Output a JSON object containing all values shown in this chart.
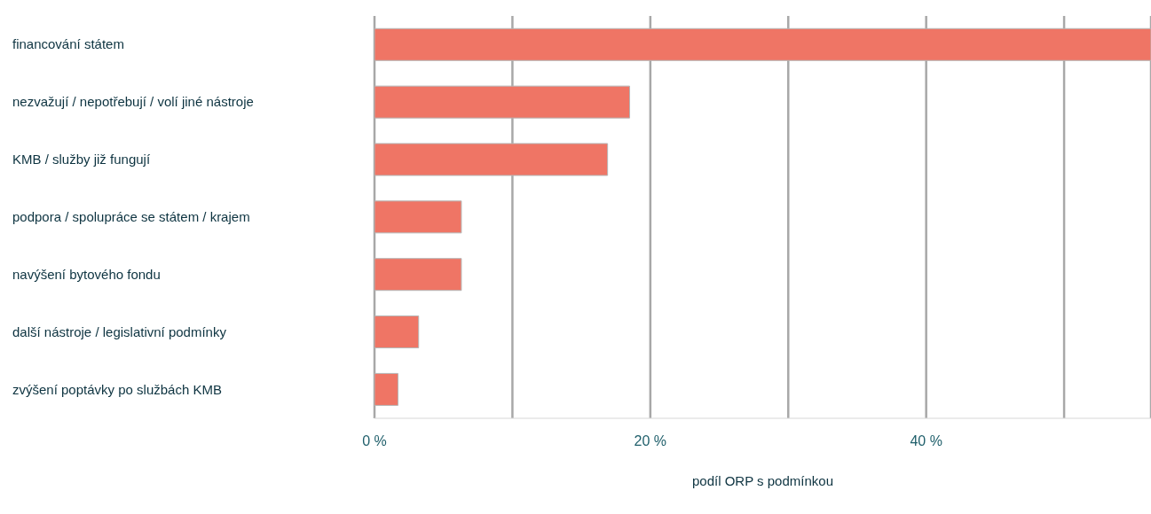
{
  "chart_data": {
    "type": "bar",
    "orientation": "horizontal",
    "xlabel": "podíl ORP s podmínkou",
    "categories": [
      "financování státem",
      "nezvažují / nepotřebují / volí jiné nástroje",
      "KMB / služby již fungují",
      "podpora / spolupráce se státem / krajem",
      "navýšení bytového fondu",
      "další nástroje / legislativní podmínky",
      "zvýšení poptávky po službách KMB"
    ],
    "values": [
      56.3,
      18.5,
      16.9,
      6.3,
      6.3,
      3.2,
      1.7
    ],
    "color": "#ef7565",
    "xlim": [
      0,
      56.3
    ],
    "xticks": [
      {
        "value": 0,
        "label": "0 %"
      },
      {
        "value": 10,
        "label": null
      },
      {
        "value": 20,
        "label": "20 %"
      },
      {
        "value": 30,
        "label": null
      },
      {
        "value": 40,
        "label": "40 %"
      },
      {
        "value": 50,
        "label": null
      }
    ],
    "grid": "x"
  }
}
